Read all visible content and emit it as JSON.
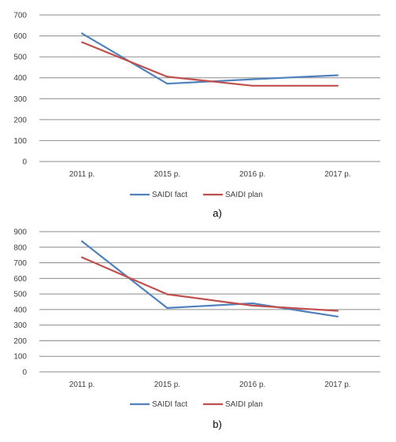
{
  "chart_data": [
    {
      "type": "line",
      "categories": [
        "2011 p.",
        "2015 p.",
        "2016 p.",
        "2017 p."
      ],
      "ylim": [
        0,
        700
      ],
      "yticks": [
        0,
        100,
        200,
        300,
        400,
        500,
        600,
        700
      ],
      "grid": true,
      "legend_position": "bottom",
      "series": [
        {
          "name": "SAIDI fact",
          "color": "#4F81BD",
          "values": [
            612,
            372,
            393,
            412
          ]
        },
        {
          "name": "SAIDI plan",
          "color": "#C0504D",
          "values": [
            570,
            405,
            362,
            362
          ]
        }
      ],
      "caption": "a)"
    },
    {
      "type": "line",
      "categories": [
        "2011 p.",
        "2015 p.",
        "2016 p.",
        "2017 p."
      ],
      "ylim": [
        0,
        900
      ],
      "yticks": [
        0,
        100,
        200,
        300,
        400,
        500,
        600,
        700,
        800,
        900
      ],
      "grid": true,
      "legend_position": "bottom",
      "series": [
        {
          "name": "SAIDI fact",
          "color": "#4F81BD",
          "values": [
            838,
            410,
            440,
            355
          ]
        },
        {
          "name": "SAIDI plan",
          "color": "#C0504D",
          "values": [
            735,
            498,
            425,
            392
          ]
        }
      ],
      "caption": "b)"
    }
  ]
}
